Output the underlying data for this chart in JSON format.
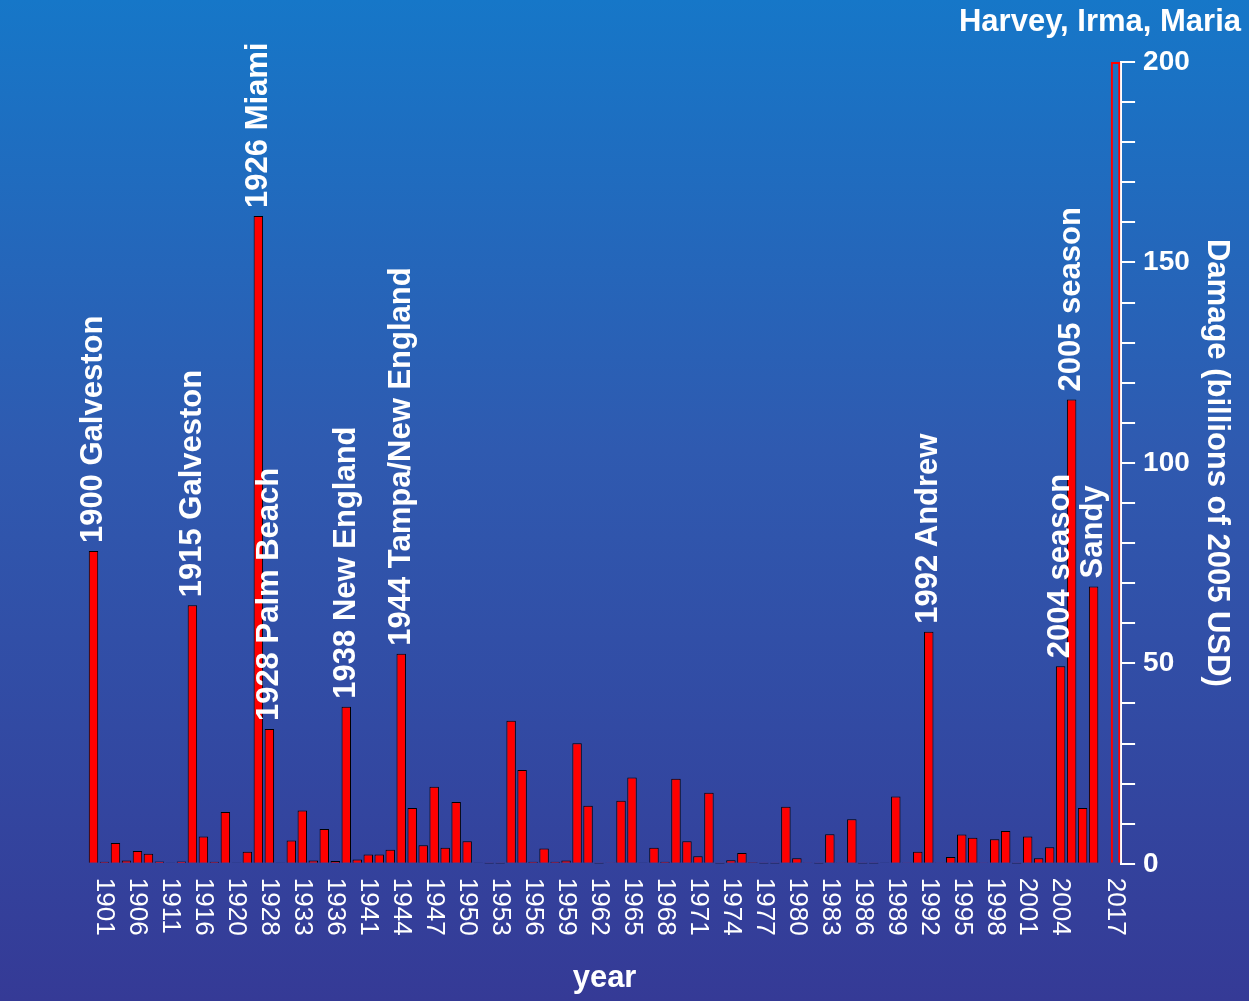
{
  "chart_data": {
    "type": "bar",
    "xlabel": "year",
    "ylabel": "Damage (billions of 2005 USD)",
    "categories": [
      null,
      "1901",
      null,
      null,
      "1906",
      null,
      null,
      "1911",
      null,
      null,
      "1916",
      null,
      null,
      "1920",
      null,
      null,
      "1928",
      null,
      null,
      "1933",
      null,
      null,
      "1936",
      null,
      null,
      "1941",
      null,
      null,
      "1944",
      null,
      null,
      "1947",
      null,
      null,
      "1950",
      null,
      null,
      "1953",
      null,
      null,
      "1956",
      null,
      null,
      "1959",
      null,
      null,
      "1962",
      null,
      null,
      "1965",
      null,
      null,
      "1968",
      null,
      null,
      "1971",
      null,
      null,
      "1974",
      null,
      null,
      "1977",
      null,
      null,
      "1980",
      null,
      null,
      "1983",
      null,
      null,
      "1986",
      null,
      null,
      "1989",
      null,
      null,
      "1992",
      null,
      null,
      "1995",
      null,
      null,
      "1998",
      null,
      null,
      "2001",
      null,
      null,
      "2004",
      null,
      null,
      null,
      null,
      "2017"
    ],
    "series": [
      {
        "color": "#ff0000",
        "values": [
          78,
          0.5,
          5.2,
          0.8,
          3.2,
          2.5,
          0.6,
          0.3,
          0.6,
          64.5,
          6.8,
          0.5,
          12.9,
          0.3,
          3,
          161.6,
          33.6,
          0.3,
          5.8,
          13.3,
          0.8,
          8.7,
          0.7,
          39.2,
          1.1,
          2.3,
          2.3,
          3.5,
          52.4,
          13.9,
          4.6,
          19.2,
          4,
          15.4,
          5.6,
          0.3,
          0.1,
          0.1,
          35.7,
          23.4,
          0.5,
          3.8,
          0.5,
          0.8,
          30.1,
          14.5,
          0.1,
          0.2,
          15.7,
          21.5,
          0.3,
          4,
          0.5,
          21.2,
          5.6,
          1.9,
          17.7,
          0.1,
          0.9,
          2.7,
          0.4,
          0.1,
          0.1,
          14.2,
          1.4,
          0.2,
          0.1,
          7.4,
          0.2,
          11.1,
          0.1,
          0.1,
          0.3,
          16.8,
          0.2,
          3,
          57.9,
          0.2,
          1.7,
          7.3,
          6.5,
          0.2,
          6.1,
          8.2,
          0.1,
          6.8,
          1.4,
          4.1,
          49.3,
          115.8,
          13.9,
          69.2,
          null,
          null
        ]
      },
      {
        "color": "#ff0000",
        "values": [
          null,
          null,
          null,
          null,
          null,
          null,
          null,
          null,
          null,
          null,
          null,
          null,
          null,
          null,
          null,
          null,
          null,
          null,
          null,
          null,
          null,
          null,
          null,
          null,
          null,
          null,
          null,
          null,
          null,
          null,
          null,
          null,
          null,
          null,
          null,
          null,
          null,
          null,
          null,
          null,
          null,
          null,
          null,
          null,
          null,
          null,
          null,
          null,
          null,
          null,
          null,
          null,
          null,
          null,
          null,
          null,
          null,
          null,
          null,
          null,
          null,
          null,
          null,
          null,
          null,
          null,
          null,
          null,
          null,
          null,
          null,
          null,
          null,
          null,
          null,
          null,
          null,
          null,
          null,
          null,
          null,
          null,
          null,
          null,
          null,
          null,
          null,
          null,
          null,
          null,
          null,
          null,
          null,
          200
        ]
      }
    ],
    "ylim": [
      0,
      200
    ],
    "yticks": [
      0,
      {
        "value": 10,
        "label": null
      },
      {
        "value": 20,
        "label": null
      },
      {
        "value": 30,
        "label": null
      },
      {
        "value": 40,
        "label": null
      },
      50,
      {
        "value": 60,
        "label": null
      },
      {
        "value": 70,
        "label": null
      },
      {
        "value": 80,
        "label": null
      },
      {
        "value": 90,
        "label": null
      },
      100,
      {
        "value": 110,
        "label": null
      },
      {
        "value": 120,
        "label": null
      },
      {
        "value": 130,
        "label": null
      },
      {
        "value": 140,
        "label": null
      },
      150,
      {
        "value": 160,
        "label": null
      },
      {
        "value": 170,
        "label": null
      },
      {
        "value": 180,
        "label": null
      },
      {
        "value": 190,
        "label": null
      },
      200
    ],
    "annotations": [
      {
        "text": "1900 Galveston",
        "y": 78
      },
      {
        "text": "1915 Galveston",
        "y": 64.5
      },
      {
        "text": "1926 Miami",
        "y": 161.6
      },
      {
        "text": "1928 Palm Beach",
        "y": 33.6
      },
      {
        "text": "1938 New England",
        "y": 39.2
      },
      {
        "text": "1944 Tampa/New England",
        "y": 52.4
      },
      {
        "text": "1992 Andrew",
        "y": 57.9
      },
      {
        "text": "2004 season",
        "y": 49.3
      },
      {
        "text": "2005 season",
        "y": 115.8
      },
      {
        "text": "Sandy",
        "y": 69.2
      },
      "Harvey, Irma, Maria"
    ]
  }
}
